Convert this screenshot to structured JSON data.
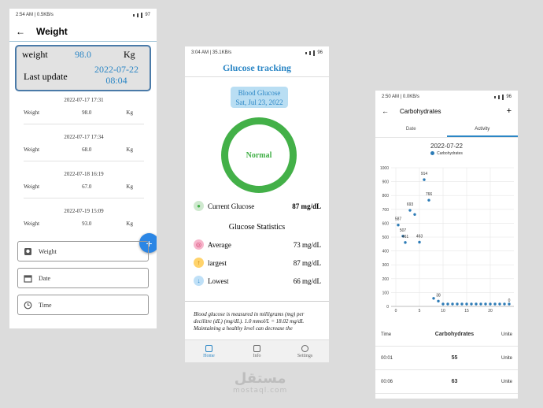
{
  "phone1": {
    "status": {
      "time": "2:54 AM | 0.5KB/s",
      "battery": "97"
    },
    "title": "Weight",
    "card": {
      "weight_label": "weight",
      "weight_value": "98.0",
      "weight_unit": "Kg",
      "update_label": "Last update",
      "update_date": "2022-07-22",
      "update_time": "08:04"
    },
    "records": [
      {
        "datetime": "2022-07-17 17:31",
        "label": "Weight",
        "value": "98.0",
        "unit": "Kg"
      },
      {
        "datetime": "2022-07-17 17:34",
        "label": "Weight",
        "value": "68.0",
        "unit": "Kg"
      },
      {
        "datetime": "2022-07-18 16:19",
        "label": "Weight",
        "value": "67.0",
        "unit": "Kg"
      },
      {
        "datetime": "2022-07-19 15:09",
        "label": "Weight",
        "value": "93.0",
        "unit": "Kg"
      }
    ],
    "fab": "+",
    "fields": {
      "weight": "Weight",
      "date": "Date",
      "time": "Time"
    }
  },
  "phone2": {
    "status": {
      "time": "3:04 AM | 35.1KB/s",
      "battery": "96"
    },
    "title": "Glucose tracking",
    "box": {
      "line1": "Blood Glucose",
      "line2": "Sat, Jul 23, 2022"
    },
    "ring_label": "Normal",
    "current": {
      "label": "Current Glucose",
      "value": "87 mg/dL"
    },
    "stats_heading": "Glucose Statistics",
    "stats": [
      {
        "label": "Average",
        "value": "73 mg/dL",
        "color": "#f7b6cc"
      },
      {
        "label": "largest",
        "value": "87 mg/dL",
        "color": "#ffd36b"
      },
      {
        "label": "Lowest",
        "value": "66 mg/dL",
        "color": "#bfe0f7"
      }
    ],
    "description": "Blood glucose is measured in  milligrams (mg) per decilitre (dL) (mg/dL). 1.0 mmol/L = 18.02 mg/dL Maintaining a healthy level can decrease the",
    "nav": {
      "home": "Home",
      "info": "Info",
      "settings": "Settings"
    }
  },
  "phone3": {
    "status": {
      "time": "2:50 AM | 0.0KB/s",
      "battery": "96"
    },
    "title": "Carbohydrates",
    "plus": "+",
    "tabs": {
      "date": "Date",
      "activity": "Activity"
    },
    "chart_data": {
      "type": "scatter",
      "title": "2022-07-22",
      "legend": "Carbohydrates",
      "series": [
        {
          "name": "Carbohydrates",
          "points": [
            [
              0.5,
              587
            ],
            [
              1.5,
              507
            ],
            [
              2,
              461
            ],
            [
              3,
              693
            ],
            [
              4,
              663
            ],
            [
              5,
              463
            ],
            [
              6,
              914
            ],
            [
              7,
              766
            ],
            [
              8,
              58
            ],
            [
              9,
              38
            ],
            [
              10,
              0
            ],
            [
              11,
              0
            ],
            [
              12,
              0
            ],
            [
              13,
              0
            ],
            [
              14,
              0
            ],
            [
              15,
              0
            ],
            [
              16,
              0
            ],
            [
              17,
              0
            ],
            [
              18,
              0
            ],
            [
              19,
              0
            ],
            [
              20,
              0
            ],
            [
              21,
              0
            ],
            [
              22,
              0
            ],
            [
              23,
              0
            ],
            [
              24,
              0
            ]
          ]
        }
      ],
      "labels": [
        {
          "x": 0.5,
          "y": 587,
          "text": "587"
        },
        {
          "x": 1.5,
          "y": 507,
          "text": "507"
        },
        {
          "x": 2,
          "y": 461,
          "text": "461"
        },
        {
          "x": 3,
          "y": 693,
          "text": "693"
        },
        {
          "x": 5,
          "y": 463,
          "text": "463"
        },
        {
          "x": 6,
          "y": 914,
          "text": "914"
        },
        {
          "x": 7,
          "y": 766,
          "text": "766"
        },
        {
          "x": 9,
          "y": 38,
          "text": "38"
        },
        {
          "x": 24,
          "y": 0,
          "text": "0"
        }
      ],
      "xticks": [
        0,
        5,
        10,
        15,
        20
      ],
      "yticks": [
        0,
        100,
        200,
        300,
        400,
        500,
        600,
        700,
        800,
        900,
        1000
      ],
      "xlim": [
        -1,
        25
      ],
      "ylim": [
        0,
        1000
      ]
    },
    "table": {
      "head": {
        "c1": "Time",
        "c2": "Carbohydrates",
        "c3": "Unite"
      },
      "rows": [
        {
          "c1": "00:01",
          "c2": "55",
          "c3": "Unite"
        },
        {
          "c1": "00:06",
          "c2": "63",
          "c3": "Unite"
        }
      ]
    }
  },
  "watermark": {
    "arabic": "مستقل",
    "latin": "mostaql.com"
  }
}
